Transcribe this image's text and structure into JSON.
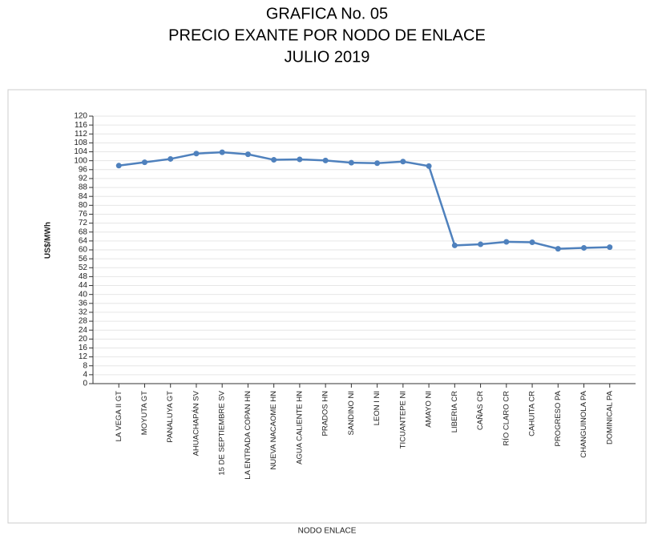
{
  "chart_data": {
    "type": "line",
    "title": [
      "GRAFICA No. 05",
      "PRECIO EXANTE POR NODO DE ENLACE",
      "JULIO 2019"
    ],
    "y_label": "US$/MWh",
    "x_label": "NODO ENLACE",
    "categories": [
      "LA VEGA II GT",
      "MOYUTA GT",
      "PANALUYA GT",
      "AHUACHAPÁN SV",
      "15 DE SEPTIEMBRE SV",
      "LA ENTRADA COPAN HN",
      "NUEVA NACAOME HN",
      "AGUA CALIENTE HN",
      "PRADOS HN",
      "SANDINO NI",
      "LEON I NI",
      "TICUANTEPE NI",
      "AMAYO NI",
      "LIBERIA CR",
      "CAÑAS CR",
      "RÍO CLARO CR",
      "CAHUITA CR",
      "PROGRESO PA",
      "CHANGUINOLA PA",
      "DOMINICAL PA"
    ],
    "values": [
      97.8,
      99.3,
      100.8,
      103.2,
      103.8,
      102.9,
      100.4,
      100.6,
      100.1,
      99.1,
      98.9,
      99.6,
      97.6,
      62.0,
      62.5,
      63.6,
      63.4,
      60.5,
      60.9,
      61.2
    ],
    "color": "#4f81bd",
    "ylim": [
      0,
      120
    ],
    "yticks": [
      0,
      4,
      8,
      12,
      16,
      20,
      24,
      28,
      32,
      36,
      40,
      44,
      48,
      52,
      56,
      60,
      64,
      68,
      72,
      76,
      80,
      84,
      88,
      92,
      96,
      100,
      104,
      108,
      112,
      116,
      120
    ],
    "grid": true
  }
}
